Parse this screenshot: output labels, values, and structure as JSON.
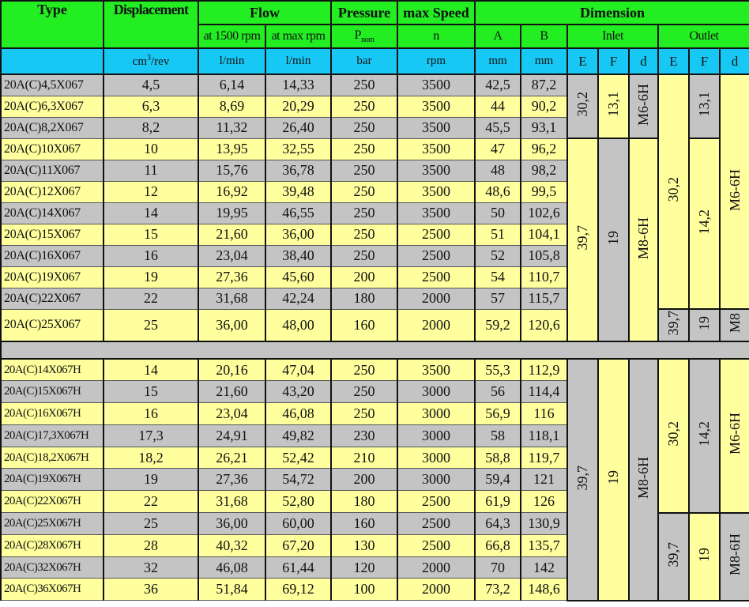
{
  "header": {
    "type": "Type",
    "displacement": "Displacement",
    "flow": "Flow",
    "flow_1500": "at 1500 rpm",
    "flow_max": "at max rpm",
    "pressure": "Pressure",
    "pressure_sym": "P",
    "pressure_sub": "nom",
    "speed": "max Speed",
    "speed_sym": "n",
    "dimension": "Dimension",
    "A": "A",
    "B": "B",
    "inlet": "Inlet",
    "outlet": "Outlet"
  },
  "units": {
    "displacement_base": "cm",
    "displacement_sup": "3",
    "displacement_rest": "/rev",
    "flow_1500": "l/min",
    "flow_max": "l/min",
    "pressure": "bar",
    "speed": "rpm",
    "A": "mm",
    "B": "mm",
    "inlet": [
      "E",
      "F",
      "d"
    ],
    "outlet": [
      "E",
      "F",
      "d"
    ]
  },
  "colors": {
    "header": "#22ee22",
    "units": "#18c8f4",
    "gray": "#c4c4c4",
    "yellow": "#ffff9e"
  },
  "sections": [
    {
      "first_shade": "gray",
      "rows": [
        [
          "20A(C)4,5X067",
          "4,5",
          "6,14",
          "14,33",
          "250",
          "3500",
          "42,5",
          "87,2"
        ],
        [
          "20A(C)6,3X067",
          "6,3",
          "8,69",
          "20,29",
          "250",
          "3500",
          "44",
          "90,2"
        ],
        [
          "20A(C)8,2X067",
          "8,2",
          "11,32",
          "26,40",
          "250",
          "3500",
          "45,5",
          "93,1"
        ],
        [
          "20A(C)10X067",
          "10",
          "13,95",
          "32,55",
          "250",
          "3500",
          "47",
          "96,2"
        ],
        [
          "20A(C)11X067",
          "11",
          "15,76",
          "36,78",
          "250",
          "3500",
          "48",
          "98,2"
        ],
        [
          "20A(C)12X067",
          "12",
          "16,92",
          "39,48",
          "250",
          "3500",
          "48,6",
          "99,5"
        ],
        [
          "20A(C)14X067",
          "14",
          "19,95",
          "46,55",
          "250",
          "3500",
          "50",
          "102,6"
        ],
        [
          "20A(C)15X067",
          "15",
          "21,60",
          "36,00",
          "250",
          "2500",
          "51",
          "104,1"
        ],
        [
          "20A(C)16X067",
          "16",
          "23,04",
          "38,40",
          "250",
          "2500",
          "52",
          "105,8"
        ],
        [
          "20A(C)19X067",
          "19",
          "27,36",
          "45,60",
          "200",
          "2500",
          "54",
          "110,7"
        ],
        [
          "20A(C)22X067",
          "22",
          "31,68",
          "42,24",
          "180",
          "2000",
          "57",
          "115,7"
        ],
        [
          "20A(C)25X067",
          "25",
          "36,00",
          "48,00",
          "160",
          "2000",
          "59,2",
          "120,6"
        ]
      ],
      "merged": [
        [
          {
            "value": "30,2",
            "rows": 3,
            "shade": "gray"
          },
          {
            "value": "39,7",
            "rows": 9,
            "shade": "yellow"
          }
        ],
        [
          {
            "value": "13,1",
            "rows": 3,
            "shade": "yellow"
          },
          {
            "value": "19",
            "rows": 9,
            "shade": "gray"
          }
        ],
        [
          {
            "value": "M6-6H",
            "rows": 3,
            "shade": "gray"
          },
          {
            "value": "M8-6H",
            "rows": 9,
            "shade": "yellow"
          }
        ],
        [
          {
            "value": "30,2",
            "rows": 11,
            "shade": "yellow"
          },
          {
            "value": "39,7",
            "rows": 1,
            "shade": "gray"
          }
        ],
        [
          {
            "value": "13,1",
            "rows": 3,
            "shade": "gray"
          },
          {
            "value": "14,2",
            "rows": 8,
            "shade": "yellow"
          },
          {
            "value": "19",
            "rows": 1,
            "shade": "gray"
          }
        ],
        [
          {
            "value": "M6-6H",
            "rows": 11,
            "shade": "yellow"
          },
          {
            "value": "M8",
            "rows": 1,
            "shade": "gray"
          }
        ]
      ]
    },
    {
      "first_shade": "yellow",
      "rows": [
        [
          "20A(C)14X067H",
          "14",
          "20,16",
          "47,04",
          "250",
          "3500",
          "55,3",
          "112,9"
        ],
        [
          "20A(C)15X067H",
          "15",
          "21,60",
          "43,20",
          "250",
          "3000",
          "56",
          "114,4"
        ],
        [
          "20A(C)16X067H",
          "16",
          "23,04",
          "46,08",
          "250",
          "3000",
          "56,9",
          "116"
        ],
        [
          "20A(C)17,3X067H",
          "17,3",
          "24,91",
          "49,82",
          "230",
          "3000",
          "58",
          "118,1"
        ],
        [
          "20A(C)18,2X067H",
          "18,2",
          "26,21",
          "52,42",
          "210",
          "3000",
          "58,8",
          "119,7"
        ],
        [
          "20A(C)19X067H",
          "19",
          "27,36",
          "54,72",
          "200",
          "3000",
          "59,4",
          "121"
        ],
        [
          "20A(C)22X067H",
          "22",
          "31,68",
          "52,80",
          "180",
          "2500",
          "61,9",
          "126"
        ],
        [
          "20A(C)25X067H",
          "25",
          "36,00",
          "60,00",
          "160",
          "2500",
          "64,3",
          "130,9"
        ],
        [
          "20A(C)28X067H",
          "28",
          "40,32",
          "67,20",
          "130",
          "2500",
          "66,8",
          "135,7"
        ],
        [
          "20A(C)32X067H",
          "32",
          "46,08",
          "61,44",
          "120",
          "2000",
          "70",
          "142"
        ],
        [
          "20A(C)36X067H",
          "36",
          "51,84",
          "69,12",
          "100",
          "2000",
          "73,2",
          "148,6"
        ]
      ],
      "merged": [
        [
          {
            "value": "39,7",
            "rows": 11,
            "shade": "gray"
          }
        ],
        [
          {
            "value": "19",
            "rows": 11,
            "shade": "yellow"
          }
        ],
        [
          {
            "value": "M8-6H",
            "rows": 11,
            "shade": "gray"
          }
        ],
        [
          {
            "value": "30,2",
            "rows": 7,
            "shade": "yellow"
          },
          {
            "value": "39,7",
            "rows": 4,
            "shade": "gray"
          }
        ],
        [
          {
            "value": "14,2",
            "rows": 7,
            "shade": "gray"
          },
          {
            "value": "19",
            "rows": 4,
            "shade": "yellow"
          }
        ],
        [
          {
            "value": "M6-6H",
            "rows": 7,
            "shade": "yellow"
          },
          {
            "value": "M8-6H",
            "rows": 4,
            "shade": "gray"
          }
        ]
      ]
    }
  ]
}
